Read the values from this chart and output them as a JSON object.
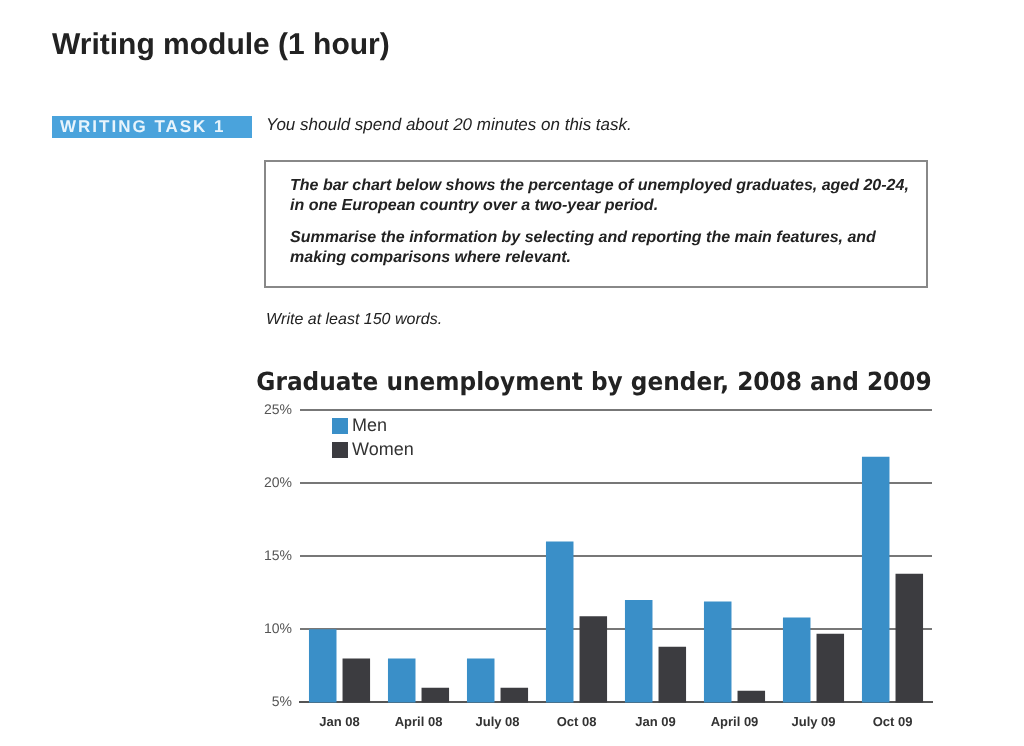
{
  "chart_data": {
    "type": "bar",
    "title": "Graduate unemployment by gender, 2008 and 2009",
    "annotations": [
      "Writing module (1 hour)",
      "WRITING TASK 1",
      "You should spend about 20 minutes on this task.",
      "The bar chart below shows the percentage of unemployed graduates, aged 20-24, in one European country over a two-year period.",
      "Summarise the information by selecting and reporting the main features, and making comparisons where relevant.",
      "Write at least 150 words."
    ],
    "categories": [
      "Jan 08",
      "April 08",
      "July 08",
      "Oct 08",
      "Jan 09",
      "April 09",
      "July 09",
      "Oct 09"
    ],
    "series": [
      {
        "name": "Men",
        "color": "#3a8fc8",
        "values": [
          10,
          8,
          8,
          16,
          12,
          11.9,
          10.8,
          21.8
        ]
      },
      {
        "name": "Women",
        "color": "#3c3c40",
        "values": [
          8,
          6,
          6,
          10.9,
          8.8,
          5.8,
          9.7,
          13.8
        ]
      }
    ],
    "ylim": [
      5,
      25
    ],
    "yticks": [
      {
        "value": 5,
        "label": "5%"
      },
      {
        "value": 10,
        "label": "10%"
      },
      {
        "value": 15,
        "label": "15%"
      },
      {
        "value": 20,
        "label": "20%"
      },
      {
        "value": 25,
        "label": "25%"
      }
    ],
    "grid": "y",
    "legend": "top left"
  }
}
